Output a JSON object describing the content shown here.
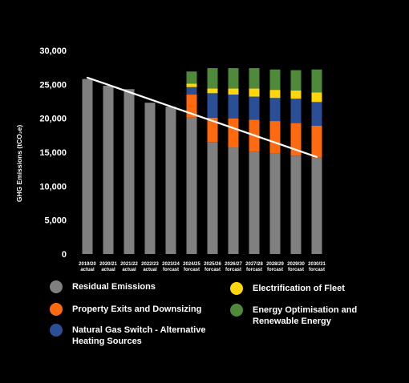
{
  "chart_data": {
    "type": "bar",
    "stacked": true,
    "title": "",
    "xlabel": "",
    "ylabel": "GHG Emissions (tCO₂e)",
    "ylim": [
      0,
      30000
    ],
    "yticks": [
      0,
      5000,
      10000,
      15000,
      20000,
      25000,
      30000
    ],
    "ytick_labels": [
      "0",
      "5,000",
      "10,000",
      "15,000",
      "20,000",
      "25,000",
      "30,000"
    ],
    "grid": false,
    "legend_position": "bottom",
    "categories": [
      {
        "year": "2019/20",
        "status": "actual"
      },
      {
        "year": "2020/21",
        "status": "actual"
      },
      {
        "year": "2021/22",
        "status": "actual"
      },
      {
        "year": "2022/23",
        "status": "actual"
      },
      {
        "year": "2023/24",
        "status": "forcast"
      },
      {
        "year": "2024/25",
        "status": "forcast"
      },
      {
        "year": "2025/26",
        "status": "forcast"
      },
      {
        "year": "2026/27",
        "status": "forcast"
      },
      {
        "year": "2027/28",
        "status": "forcast"
      },
      {
        "year": "2028/29",
        "status": "forcast"
      },
      {
        "year": "2029/30",
        "status": "forcast"
      },
      {
        "year": "2030/31",
        "status": "forcast"
      }
    ],
    "series": [
      {
        "name": "Residual Emissions",
        "color": "#808080",
        "values": [
          25800,
          24800,
          24300,
          22300,
          21700,
          20100,
          16500,
          15700,
          15100,
          14800,
          14500,
          14200
        ]
      },
      {
        "name": "Property Exits and Downsizing",
        "color": "#ff6a10",
        "values": [
          0,
          0,
          0,
          0,
          0,
          3400,
          3600,
          4300,
          4700,
          4800,
          4800,
          4700
        ]
      },
      {
        "name": "Natural Gas Switch - Alternative Heating Sources",
        "color": "#2a4f96",
        "values": [
          0,
          0,
          0,
          0,
          0,
          1100,
          3600,
          3500,
          3400,
          3400,
          3600,
          3500
        ]
      },
      {
        "name": "Electrification of Fleet",
        "color": "#ffd60a",
        "values": [
          0,
          0,
          0,
          0,
          0,
          500,
          700,
          900,
          1200,
          1200,
          1200,
          1400
        ]
      },
      {
        "name": "Energy Optimisation and Renewable Energy",
        "color": "#4e8a3a",
        "values": [
          0,
          0,
          0,
          0,
          0,
          1800,
          3000,
          3000,
          3000,
          3000,
          3000,
          3400
        ]
      }
    ],
    "trendline": {
      "color": "#ffffff",
      "x_start": "2019/20",
      "x_end": "2030/31",
      "y_start": 26000,
      "y_end": 14300
    }
  },
  "legend": [
    {
      "label": "Residual Emissions",
      "color": "#808080"
    },
    {
      "label": "Property Exits and Downsizing",
      "color": "#ff6a10"
    },
    {
      "label": "Natural Gas Switch - Alternative Heating Sources",
      "color": "#2a4f96"
    },
    {
      "label": "Electrification of Fleet",
      "color": "#ffd60a"
    },
    {
      "label": "Energy Optimisation and Renewable Energy",
      "color": "#4e8a3a"
    }
  ]
}
